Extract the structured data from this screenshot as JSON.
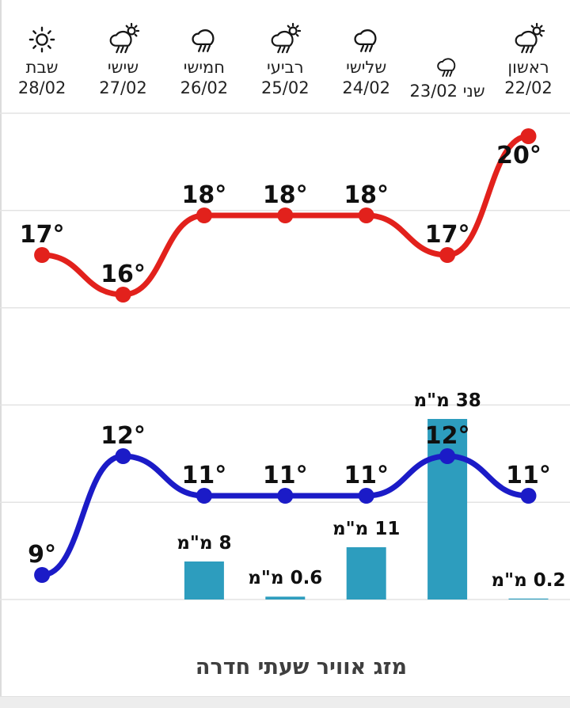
{
  "widget": {
    "title": "מזג אוויר שעתי חדרה"
  },
  "header": {
    "layout_note": "columns run right-to-left; first (chronological) day is at the right edge",
    "days": [
      {
        "name": "ראשון",
        "date": "22/02",
        "icon": "cloud-rain-sun-icon",
        "single_line": false
      },
      {
        "name": "שני",
        "date": "23/02",
        "icon": "cloud-rain-icon",
        "single_line": true
      },
      {
        "name": "שלישי",
        "date": "24/02",
        "icon": "cloud-rain-icon",
        "single_line": false
      },
      {
        "name": "רביעי",
        "date": "25/02",
        "icon": "cloud-rain-sun-icon",
        "single_line": false
      },
      {
        "name": "חמישי",
        "date": "26/02",
        "icon": "cloud-rain-icon",
        "single_line": false
      },
      {
        "name": "שישי",
        "date": "27/02",
        "icon": "cloud-rain-sun-icon",
        "single_line": false
      },
      {
        "name": "שבת",
        "date": "28/02",
        "icon": "sun-icon",
        "single_line": false
      }
    ]
  },
  "colors": {
    "high_line": "#e2211c",
    "low_line": "#1b1bc7",
    "precip_bar": "#2d9dbe",
    "gridline": "#e3e3e3",
    "day_text": "#222222",
    "label_text": "#101010",
    "title_text": "#3f3f3f",
    "footer_strip": "#ededed"
  },
  "chart_data": [
    {
      "type": "line",
      "name": "daily-high-temperature",
      "categories": [
        "ראשון 22/02",
        "שני 23/02",
        "שלישי 24/02",
        "רביעי 25/02",
        "חמישי 26/02",
        "שישי 27/02",
        "שבת 28/02"
      ],
      "values": [
        20,
        17,
        18,
        18,
        18,
        16,
        17
      ],
      "unit_symbol": "°",
      "color": "#e2211c",
      "point_labels_shown": true,
      "layout": "right-to-left, smooth curve with round markers, no axes shown"
    },
    {
      "type": "line",
      "name": "daily-low-temperature",
      "categories": [
        "ראשון 22/02",
        "שני 23/02",
        "שלישי 24/02",
        "רביעי 25/02",
        "חמישי 26/02",
        "שישי 27/02",
        "שבת 28/02"
      ],
      "values": [
        11,
        12,
        11,
        11,
        11,
        12,
        9
      ],
      "unit_symbol": "°",
      "color": "#1b1bc7",
      "point_labels_shown": true,
      "layout": "right-to-left, smooth curve with round markers, no axes shown"
    },
    {
      "type": "bar",
      "name": "daily-precipitation",
      "categories": [
        "ראשון 22/02",
        "שני 23/02",
        "שלישי 24/02",
        "רביעי 25/02",
        "חמישי 26/02",
        "שישי 27/02",
        "שבת 28/02"
      ],
      "values": [
        0.2,
        38,
        11,
        0.6,
        8,
        null,
        null
      ],
      "unit": "מ\"מ",
      "color": "#2d9dbe",
      "value_labels_shown": true,
      "layout": "right-to-left, bars rise from baseline shared with grid, labels above bars"
    }
  ]
}
